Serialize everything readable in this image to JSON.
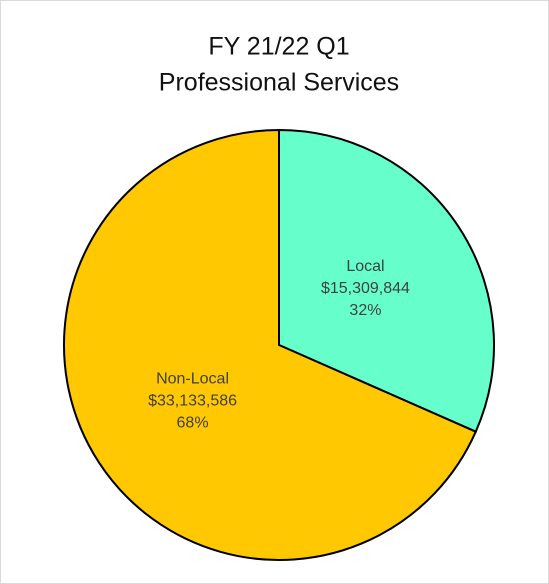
{
  "chart_data": {
    "type": "pie",
    "title": [
      "FY 21/22 Q1",
      "Professional Services"
    ],
    "categories": [
      "Local",
      "Non-Local"
    ],
    "values": [
      15309844,
      33133586
    ],
    "value_labels": [
      "$15,309,844",
      "$33,133,586"
    ],
    "percent_labels": [
      "32%",
      "68%"
    ],
    "colors": [
      "#66ffcc",
      "#ffc800"
    ]
  }
}
